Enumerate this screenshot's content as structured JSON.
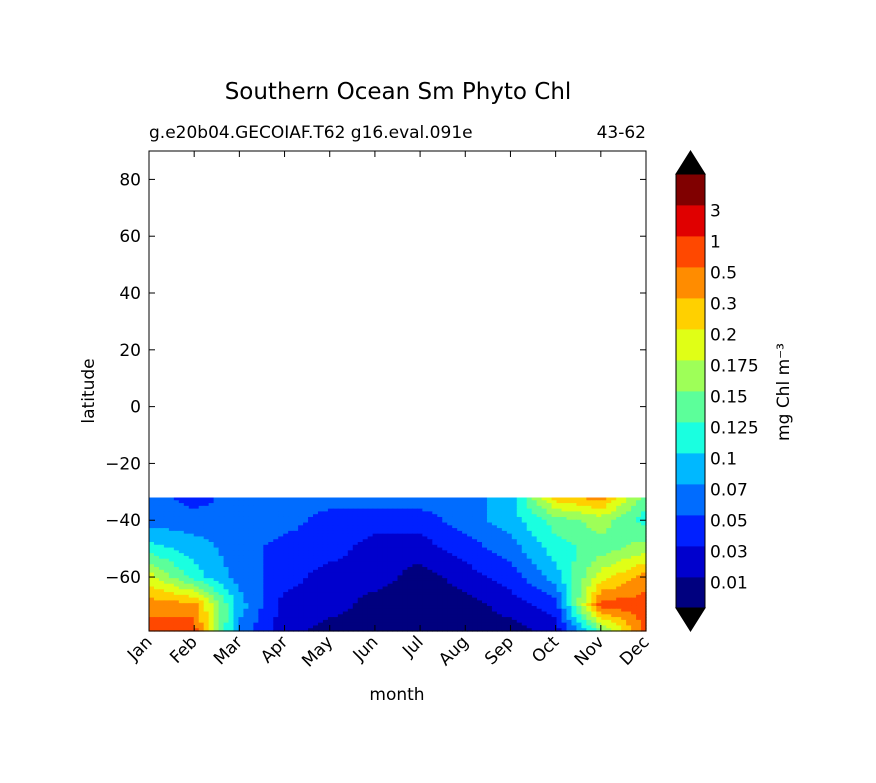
{
  "chart_data": {
    "type": "heatmap",
    "title": "Southern Ocean Sm Phyto Chl",
    "subtitle_left": "g.e20b04.GECOIAF.T62 g16.eval.091e",
    "subtitle_right": "43-62",
    "xlabel": "month",
    "ylabel": "latitude",
    "x_categories": [
      "Jan",
      "Feb",
      "Mar",
      "Apr",
      "May",
      "Jun",
      "Jul",
      "Aug",
      "Sep",
      "Oct",
      "Nov",
      "Dec"
    ],
    "ylim": [
      -79,
      90
    ],
    "yticks": [
      80,
      60,
      40,
      20,
      0,
      -20,
      -40,
      -60
    ],
    "ytick_labels": [
      "80",
      "60",
      "40",
      "20",
      "0",
      "−20",
      "−40",
      "−60"
    ],
    "data_lat_range": [
      -79,
      -32
    ],
    "colorbar": {
      "label": "mg Chl m⁻³",
      "levels": [
        {
          "label": "0.01",
          "color": "#00007f"
        },
        {
          "label": "0.03",
          "color": "#0000cd"
        },
        {
          "label": "0.05",
          "color": "#0020ff"
        },
        {
          "label": "0.07",
          "color": "#006cff"
        },
        {
          "label": "0.1",
          "color": "#00b8ff"
        },
        {
          "label": "0.125",
          "color": "#1affe0"
        },
        {
          "label": "0.15",
          "color": "#5cff9a"
        },
        {
          "label": "0.175",
          "color": "#9eff58"
        },
        {
          "label": "0.2",
          "color": "#e0ff16"
        },
        {
          "label": "0.3",
          "color": "#ffd000"
        },
        {
          "label": "0.5",
          "color": "#ff8c00"
        },
        {
          "label": "1",
          "color": "#ff4800"
        },
        {
          "label": "3",
          "color": "#e00000"
        },
        {
          "label": "",
          "color": "#800000"
        }
      ],
      "extend_low_color": "#000000",
      "extend_high_color": "#000000"
    },
    "field": {
      "description_months": [
        "Jan",
        "Feb",
        "Mar",
        "Apr",
        "May",
        "Jun",
        "Jul",
        "Aug",
        "Sep",
        "Oct",
        "Nov",
        "Dec"
      ],
      "lat_rows": [
        -32,
        -40,
        -50,
        -60,
        -70,
        -79
      ],
      "level_index": [
        [
          3,
          2,
          3,
          3,
          3,
          3,
          3,
          3,
          4,
          9,
          10,
          6
        ],
        [
          3,
          3,
          3,
          3,
          2,
          2,
          2,
          3,
          4,
          6,
          7,
          5
        ],
        [
          5,
          4,
          3,
          2,
          2,
          1,
          1,
          2,
          3,
          5,
          6,
          7
        ],
        [
          8,
          5,
          3,
          2,
          1,
          1,
          0,
          1,
          2,
          4,
          8,
          10
        ],
        [
          10,
          10,
          4,
          1,
          1,
          0,
          0,
          0,
          1,
          2,
          11,
          11
        ],
        [
          11,
          11,
          3,
          1,
          0,
          0,
          0,
          0,
          0,
          1,
          6,
          11
        ]
      ]
    }
  }
}
